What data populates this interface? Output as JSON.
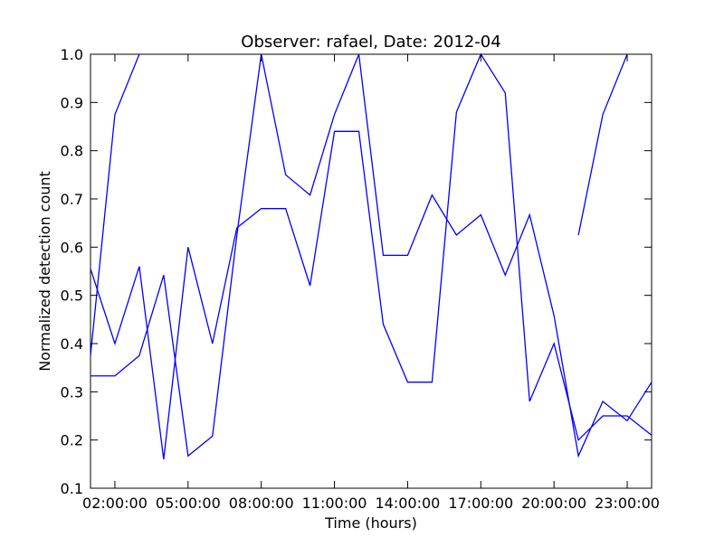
{
  "chart_data": {
    "type": "line",
    "title": "Observer: rafael, Date: 2012-04",
    "xlabel": "Time (hours)",
    "ylabel": "Normalized detection count",
    "x_unit": "hours",
    "xlim": [
      1,
      24
    ],
    "ylim": [
      0.1,
      1.0
    ],
    "x_ticks": [
      {
        "value": 2,
        "label": "02:00:00"
      },
      {
        "value": 5,
        "label": "05:00:00"
      },
      {
        "value": 8,
        "label": "08:00:00"
      },
      {
        "value": 11,
        "label": "11:00:00"
      },
      {
        "value": 14,
        "label": "14:00:00"
      },
      {
        "value": 17,
        "label": "17:00:00"
      },
      {
        "value": 20,
        "label": "20:00:00"
      },
      {
        "value": 23,
        "label": "23:00:00"
      }
    ],
    "y_ticks": [
      {
        "value": 0.1,
        "label": "0.1"
      },
      {
        "value": 0.2,
        "label": "0.2"
      },
      {
        "value": 0.3,
        "label": "0.3"
      },
      {
        "value": 0.4,
        "label": "0.4"
      },
      {
        "value": 0.5,
        "label": "0.5"
      },
      {
        "value": 0.6,
        "label": "0.6"
      },
      {
        "value": 0.7,
        "label": "0.7"
      },
      {
        "value": 0.8,
        "label": "0.8"
      },
      {
        "value": 0.9,
        "label": "0.9"
      },
      {
        "value": 1.0,
        "label": "1.0"
      }
    ],
    "grid": false,
    "legend": "none",
    "color": "#0000ff",
    "series": [
      {
        "segments": [
          {
            "x": [
              1,
              2,
              3,
              4,
              5,
              6,
              7,
              8,
              9,
              10,
              11,
              12,
              13,
              14,
              15,
              16,
              17,
              18,
              19,
              20,
              21,
              22,
              23,
              24
            ],
            "y": [
              0.555,
              0.4,
              0.56,
              0.16,
              0.6,
              0.4,
              0.64,
              0.68,
              0.68,
              0.52,
              0.84,
              0.84,
              0.44,
              0.32,
              0.32,
              0.88,
              1.0,
              0.92,
              0.28,
              0.4,
              0.2,
              0.25,
              0.25,
              0.21
            ]
          }
        ]
      },
      {
        "segments": [
          {
            "x": [
              1,
              2,
              3,
              4,
              5,
              6,
              7,
              8,
              9,
              10,
              11,
              12,
              13,
              14,
              15,
              16,
              17,
              18,
              19,
              20,
              21,
              22,
              23,
              24
            ],
            "y": [
              0.333,
              0.333,
              0.375,
              0.542,
              0.167,
              0.208,
              0.625,
              1.0,
              0.75,
              0.708,
              0.875,
              1.0,
              0.583,
              0.583,
              0.708,
              0.625,
              0.667,
              0.542,
              0.667,
              0.458,
              0.167,
              0.28,
              0.24,
              0.32
            ]
          }
        ]
      },
      {
        "segments": [
          {
            "x": [
              1,
              2,
              3
            ],
            "y": [
              0.375,
              0.875,
              1.0
            ]
          },
          {
            "x": [
              21,
              22,
              23
            ],
            "y": [
              0.625,
              0.875,
              1.0
            ]
          }
        ]
      }
    ]
  }
}
